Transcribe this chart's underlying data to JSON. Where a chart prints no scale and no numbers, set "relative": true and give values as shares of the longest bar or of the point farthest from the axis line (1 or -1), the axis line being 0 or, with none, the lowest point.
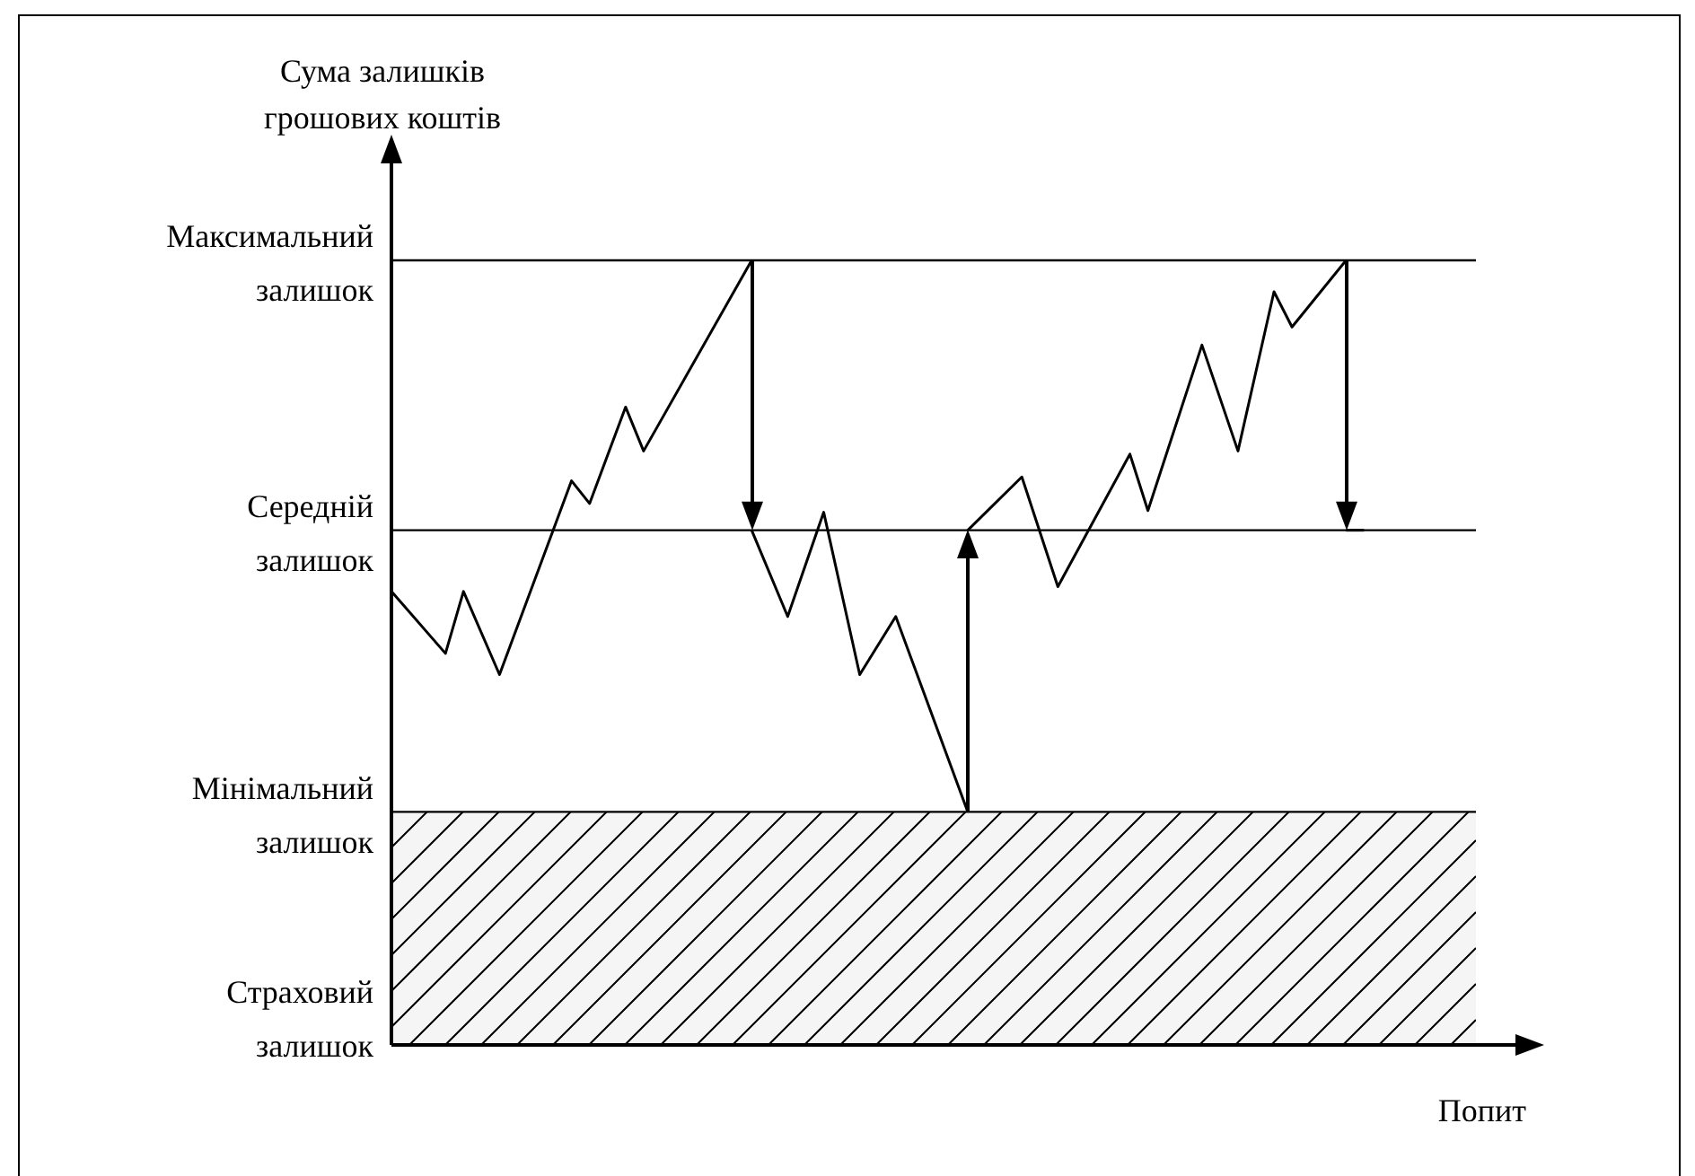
{
  "chart_data": {
    "type": "line",
    "relative": true,
    "ylabel": "Сума залишків грошових коштів",
    "xlabel": "Попит",
    "tick_labels": false,
    "grid": false,
    "legend": false,
    "marker": "none",
    "categories": [
      null,
      null,
      null,
      null,
      null,
      null,
      null,
      null,
      null,
      null,
      null,
      null,
      null,
      null,
      null,
      null,
      null,
      null,
      null,
      null,
      null,
      null,
      null,
      null,
      null,
      null,
      null,
      null,
      null,
      null,
      null,
      null,
      null,
      null,
      null,
      null,
      null,
      null,
      null,
      null,
      null,
      null,
      null,
      null,
      null,
      null,
      null,
      null,
      null,
      null,
      null,
      null,
      null,
      null,
      null,
      null,
      null,
      null,
      null,
      null,
      null,
      null,
      null,
      null,
      null
    ],
    "series": [
      {
        "color": "#000000",
        "values": [
          0.578,
          null,
          null,
          0.499,
          0.578,
          null,
          0.472,
          null,
          null,
          null,
          0.719,
          0.69,
          null,
          0.813,
          0.757,
          null,
          null,
          null,
          null,
          null,
          1,
          null,
          null,
          null,
          null,
          null,
          null,
          null,
          null,
          null,
          null,
          null,
          null,
          null,
          null,
          null,
          null,
          null,
          null,
          null,
          null,
          null,
          null,
          null,
          null,
          null,
          null,
          null,
          null,
          null,
          null,
          null,
          null,
          null,
          null,
          null,
          null,
          null,
          null,
          null,
          null,
          null,
          null,
          null,
          null
        ]
      },
      {
        "color": "#000000",
        "values": [
          null,
          null,
          null,
          null,
          null,
          null,
          null,
          null,
          null,
          null,
          null,
          null,
          null,
          null,
          null,
          null,
          null,
          null,
          null,
          null,
          0.656,
          null,
          0.546,
          null,
          0.679,
          null,
          0.472,
          null,
          0.546,
          null,
          null,
          null,
          0.297,
          null,
          null,
          null,
          null,
          null,
          null,
          null,
          null,
          null,
          null,
          null,
          null,
          null,
          null,
          null,
          null,
          null,
          null,
          null,
          null,
          null,
          null,
          null,
          null,
          null,
          null,
          null,
          null,
          null,
          null,
          null,
          null
        ]
      },
      {
        "color": "#000000",
        "values": [
          null,
          null,
          null,
          null,
          null,
          null,
          null,
          null,
          null,
          null,
          null,
          null,
          null,
          null,
          null,
          null,
          null,
          null,
          null,
          null,
          null,
          null,
          null,
          null,
          null,
          null,
          null,
          null,
          null,
          null,
          null,
          null,
          0.656,
          null,
          null,
          0.724,
          null,
          0.584,
          null,
          null,
          null,
          0.753,
          0.681,
          null,
          null,
          0.892,
          null,
          0.757,
          null,
          0.96,
          0.915,
          null,
          null,
          1,
          null,
          null,
          null,
          null,
          null,
          null,
          null,
          null,
          null,
          null,
          null
        ]
      },
      {
        "color": "#000000",
        "values": [
          null,
          null,
          null,
          null,
          null,
          null,
          null,
          null,
          null,
          null,
          null,
          null,
          null,
          null,
          null,
          null,
          null,
          null,
          null,
          null,
          null,
          null,
          null,
          null,
          null,
          null,
          null,
          null,
          null,
          null,
          null,
          null,
          null,
          null,
          null,
          null,
          null,
          null,
          null,
          null,
          null,
          null,
          null,
          null,
          null,
          null,
          null,
          null,
          null,
          null,
          null,
          null,
          null,
          0.656,
          0.656,
          null,
          null,
          null,
          null,
          null,
          null,
          null,
          null,
          null,
          null
        ]
      }
    ],
    "ref_lines": [
      {
        "axis": "y",
        "value": 1,
        "label": "Максимальний залишок"
      },
      {
        "axis": "y",
        "value": 0.656,
        "label": "Середній залишок"
      },
      {
        "axis": "y",
        "value": 0.297,
        "label": "Мінімальний залишок"
      }
    ],
    "bands": [
      {
        "axis": "y",
        "from": 0,
        "to": 0.297,
        "label": "Страховий залишок",
        "color": "#000000"
      }
    ]
  }
}
